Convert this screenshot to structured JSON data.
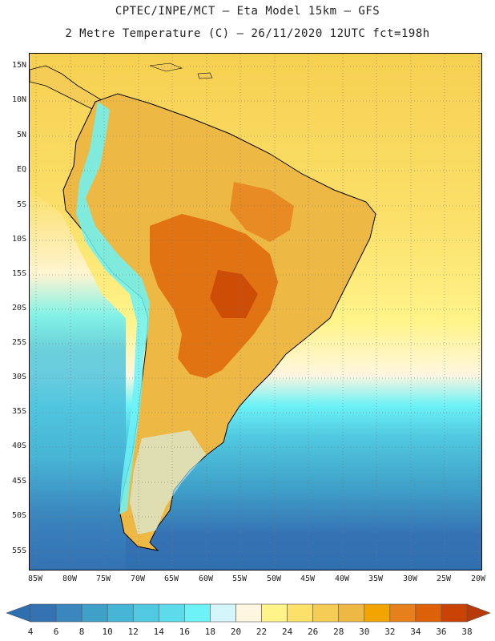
{
  "header": {
    "title_line1": "CPTEC/INPE/MCT –  Eta Model 15km – GFS",
    "title_line2": "2 Metre Temperature (C) – 26/11/2020 12UTC fct=198h"
  },
  "map": {
    "lat_labels": [
      "15N",
      "10N",
      "5N",
      "EQ",
      "5S",
      "10S",
      "15S",
      "20S",
      "25S",
      "30S",
      "35S",
      "40S",
      "45S",
      "50S",
      "55S"
    ],
    "lon_labels": [
      "85W",
      "80W",
      "75W",
      "70W",
      "65W",
      "60W",
      "55W",
      "50W",
      "45W",
      "40W",
      "35W",
      "30W",
      "25W",
      "20W"
    ]
  },
  "colorbar": {
    "labels": [
      "4",
      "6",
      "8",
      "10",
      "12",
      "14",
      "16",
      "18",
      "20",
      "22",
      "24",
      "26",
      "28",
      "30",
      "32",
      "34",
      "36",
      "38"
    ],
    "colors": {
      "below": "#2f6fb0",
      "bins": [
        "#3572b4",
        "#3a86be",
        "#3fa0c8",
        "#47b5d6",
        "#51c9e0",
        "#5edbea",
        "#6cf2f7",
        "#d4f6fb",
        "#fff6e0",
        "#fff48a",
        "#fbe06a",
        "#f5cc55",
        "#eeb844",
        "#f2a500",
        "#e6801c",
        "#dd6108",
        "#c94404"
      ],
      "above": "#b83a0a"
    }
  }
}
